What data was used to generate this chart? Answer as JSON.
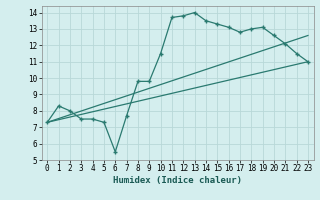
{
  "xlabel": "Humidex (Indice chaleur)",
  "bg_color": "#d4eeee",
  "grid_color": "#b8d8d8",
  "line_color": "#2a7a70",
  "xlim": [
    -0.5,
    23.5
  ],
  "ylim": [
    5,
    14.4
  ],
  "xticks": [
    0,
    1,
    2,
    3,
    4,
    5,
    6,
    7,
    8,
    9,
    10,
    11,
    12,
    13,
    14,
    15,
    16,
    17,
    18,
    19,
    20,
    21,
    22,
    23
  ],
  "yticks": [
    5,
    6,
    7,
    8,
    9,
    10,
    11,
    12,
    13,
    14
  ],
  "line1_x": [
    0,
    1,
    2,
    3,
    4,
    5,
    6,
    7,
    8,
    9,
    10,
    11,
    12,
    13,
    14,
    15,
    16,
    17,
    18,
    19,
    20,
    21,
    22,
    23
  ],
  "line1_y": [
    7.3,
    8.3,
    8.0,
    7.5,
    7.5,
    7.3,
    5.5,
    7.7,
    9.8,
    9.8,
    11.5,
    13.7,
    13.8,
    14.0,
    13.5,
    13.3,
    13.1,
    12.8,
    13.0,
    13.1,
    12.6,
    12.1,
    11.5,
    11.0
  ],
  "line2_x": [
    0,
    23
  ],
  "line2_y": [
    7.3,
    11.0
  ],
  "line3_x": [
    0,
    23
  ],
  "line3_y": [
    7.3,
    12.6
  ],
  "tick_fontsize": 5.5,
  "xlabel_fontsize": 6.5
}
